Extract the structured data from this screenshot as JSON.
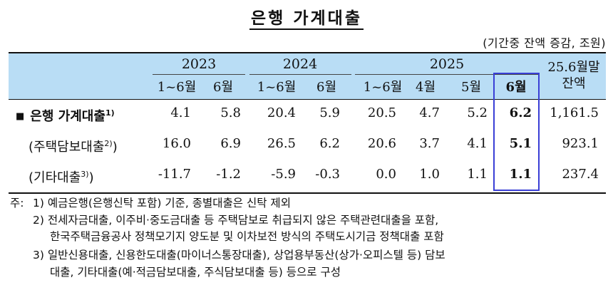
{
  "title": "은행 가계대출",
  "unit": "(기간중 잔액 증감, 조원)",
  "header": {
    "years": [
      "2023",
      "2024",
      "2025"
    ],
    "sub_2023": [
      "1~6월",
      "6월"
    ],
    "sub_2024": [
      "1~6월",
      "6월"
    ],
    "sub_2025": [
      "1~6월",
      "4월",
      "5월",
      "6월"
    ],
    "balance_label_1": "25.6월말",
    "balance_label_2": "잔액"
  },
  "rows": [
    {
      "bullet": "■",
      "label": "은행 가계대출",
      "sup": "1)",
      "values": [
        "4.1",
        "5.8",
        "20.4",
        "5.9",
        "20.5",
        "4.7",
        "5.2",
        "6.2",
        "1,161.5"
      ]
    },
    {
      "label": "(주택담보대출",
      "sup": "2)",
      "label_end": ")",
      "values": [
        "16.0",
        "6.9",
        "26.5",
        "6.2",
        "20.6",
        "3.7",
        "4.1",
        "5.1",
        "923.1"
      ]
    },
    {
      "label": "(기타대출",
      "sup": "3)",
      "label_end": ")",
      "values": [
        "-11.7",
        "-1.2",
        "-5.9",
        "-0.3",
        "0.0",
        "1.0",
        "1.1",
        "1.1",
        "237.4"
      ]
    }
  ],
  "notes": {
    "prefix": "주:",
    "n1": "1) 예금은행(은행신탁 포함) 기준, 종별대출은 신탁 제외",
    "n2a": "2) 전세자금대출, 이주비·중도금대출 등 주택담보로 취급되지 않은 주택관련대출을 포함,",
    "n2b": "한국주택금융공사 정책모기지 양도분 및 이차보전 방식의 주택도시기금 정책대출 포함",
    "n3a": "3) 일반신용대출, 신용한도대출(마이너스통장대출), 상업용부동산(상가·오피스텔 등) 담보",
    "n3b": "대출, 기타대출(예·적금담보대출, 주식담보대출 등) 등으로 구성"
  }
}
